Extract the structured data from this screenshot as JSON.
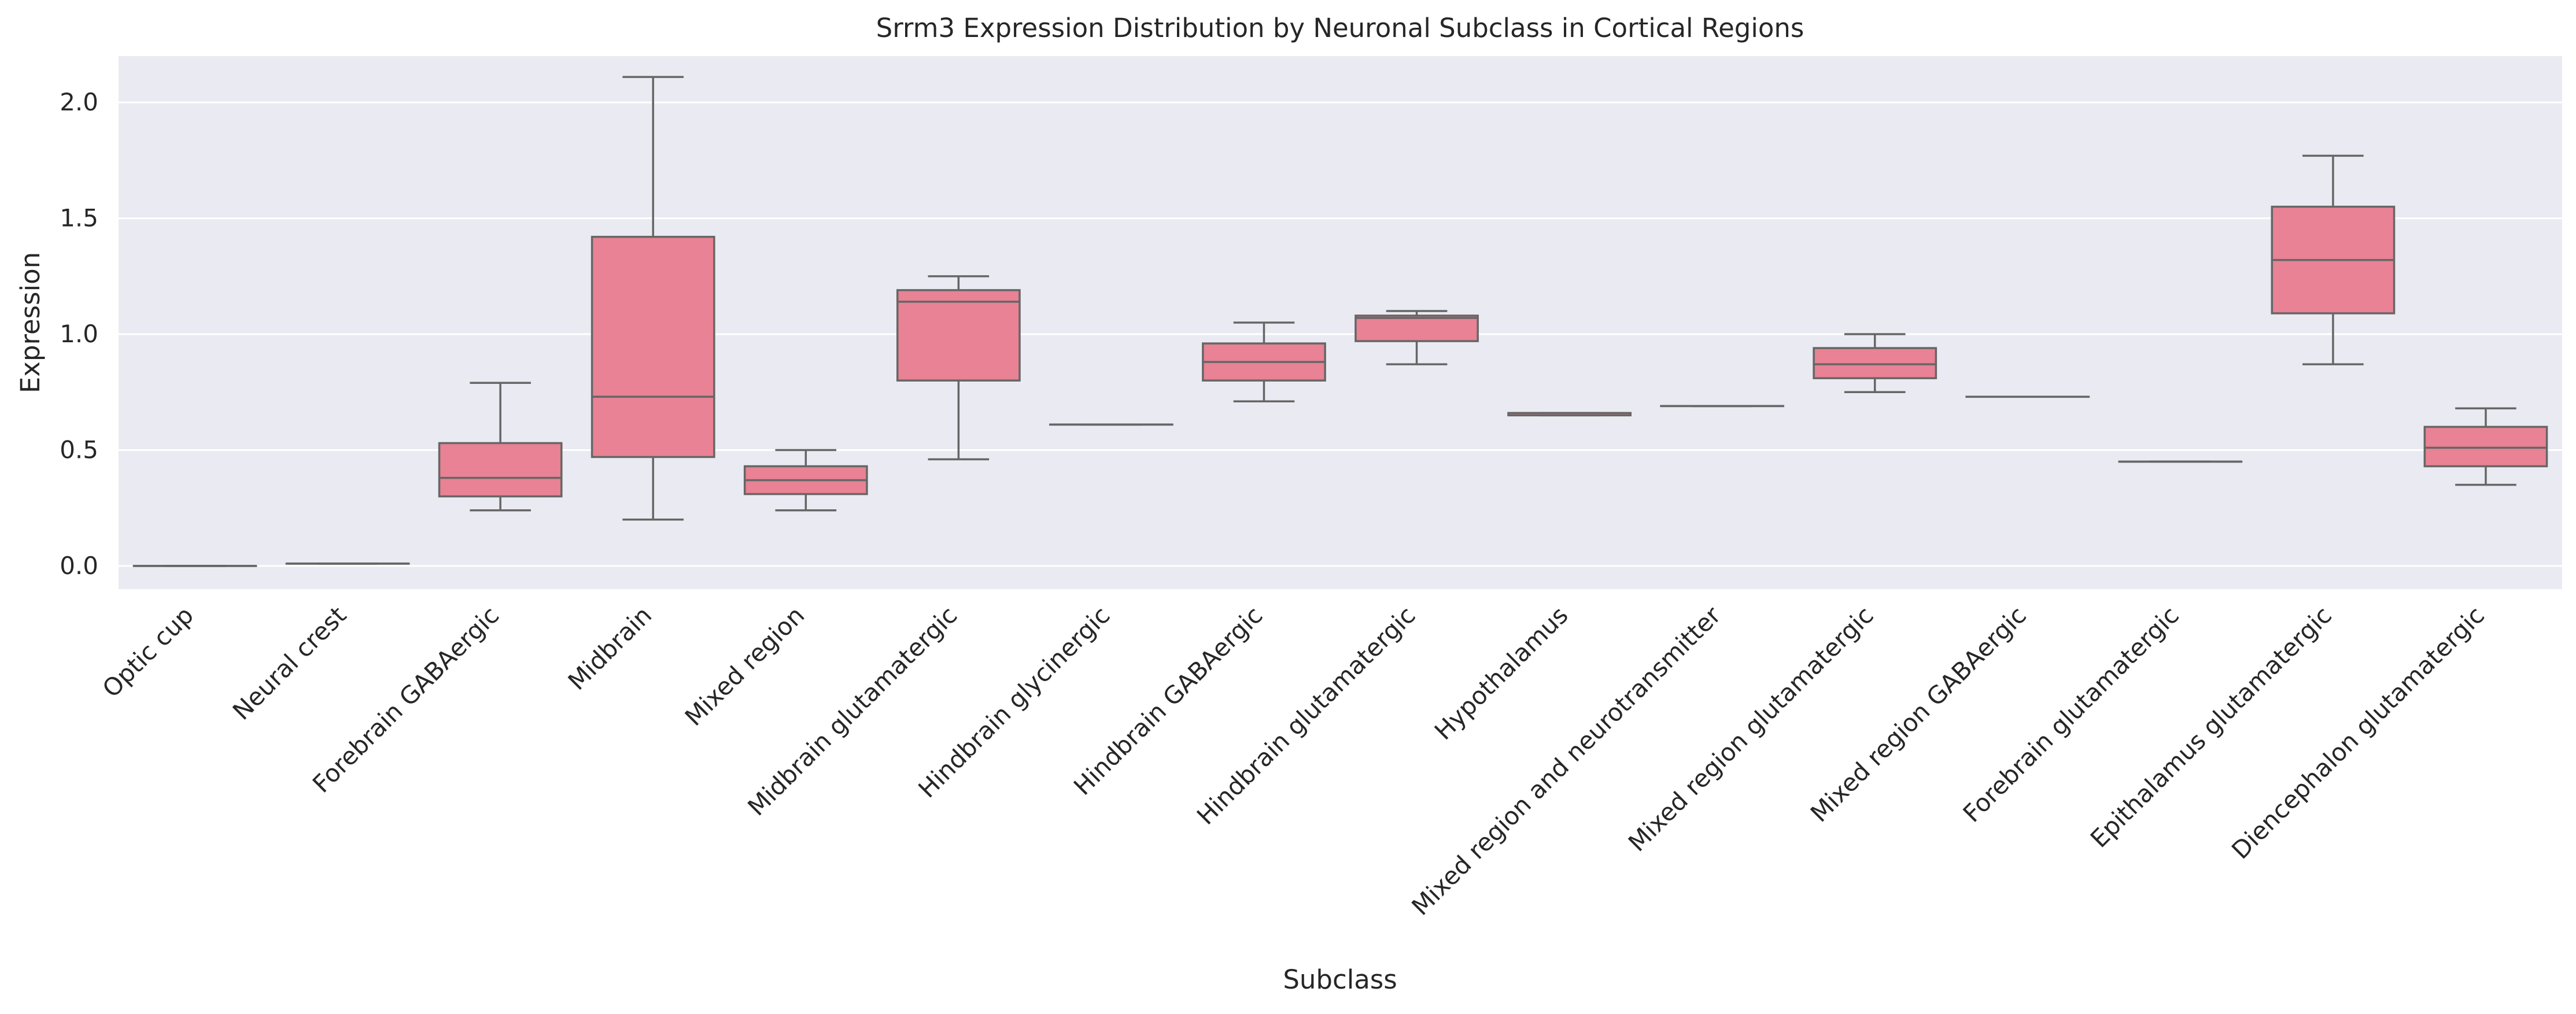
{
  "chart_data": {
    "type": "box",
    "title": "Srrm3 Expression Distribution by Neuronal Subclass in Cortical Regions",
    "xlabel": "Subclass",
    "ylabel": "Expression",
    "ylim": [
      -0.1,
      2.2
    ],
    "yticks": [
      0.0,
      0.5,
      1.0,
      1.5,
      2.0
    ],
    "ytick_labels": [
      "0.0",
      "0.5",
      "1.0",
      "1.5",
      "2.0"
    ],
    "grid": true,
    "colors": {
      "box_fill": "#e88294",
      "box_edge": "#666666",
      "plot_bg": "#eaeaf2",
      "grid": "#ffffff"
    },
    "categories": [
      "Optic cup",
      "Neural crest",
      "Forebrain GABAergic",
      "Midbrain",
      "Mixed region",
      "Midbrain glutamatergic",
      "Hindbrain glycinergic",
      "Hindbrain GABAergic",
      "Hindbrain glutamatergic",
      "Hypothalamus",
      "Mixed region and neurotransmitter",
      "Mixed region glutamatergic",
      "Mixed region GABAergic",
      "Forebrain glutamatergic",
      "Epithalamus glutamatergic",
      "Diencephalon glutamatergic"
    ],
    "boxes": [
      {
        "whisker_low": 0.0,
        "q1": 0.0,
        "median": 0.0,
        "q3": 0.0,
        "whisker_high": 0.0
      },
      {
        "whisker_low": 0.01,
        "q1": 0.01,
        "median": 0.01,
        "q3": 0.01,
        "whisker_high": 0.01
      },
      {
        "whisker_low": 0.24,
        "q1": 0.3,
        "median": 0.38,
        "q3": 0.53,
        "whisker_high": 0.79
      },
      {
        "whisker_low": 0.2,
        "q1": 0.47,
        "median": 0.73,
        "q3": 1.42,
        "whisker_high": 2.11
      },
      {
        "whisker_low": 0.24,
        "q1": 0.31,
        "median": 0.37,
        "q3": 0.43,
        "whisker_high": 0.5
      },
      {
        "whisker_low": 0.46,
        "q1": 0.8,
        "median": 1.14,
        "q3": 1.19,
        "whisker_high": 1.25
      },
      {
        "whisker_low": 0.61,
        "q1": 0.61,
        "median": 0.61,
        "q3": 0.61,
        "whisker_high": 0.61
      },
      {
        "whisker_low": 0.71,
        "q1": 0.8,
        "median": 0.88,
        "q3": 0.96,
        "whisker_high": 1.05
      },
      {
        "whisker_low": 0.87,
        "q1": 0.97,
        "median": 1.07,
        "q3": 1.08,
        "whisker_high": 1.1
      },
      {
        "whisker_low": 0.65,
        "q1": 0.65,
        "median": 0.65,
        "q3": 0.66,
        "whisker_high": 0.66
      },
      {
        "whisker_low": 0.69,
        "q1": 0.69,
        "median": 0.69,
        "q3": 0.69,
        "whisker_high": 0.69
      },
      {
        "whisker_low": 0.75,
        "q1": 0.81,
        "median": 0.87,
        "q3": 0.94,
        "whisker_high": 1.0
      },
      {
        "whisker_low": 0.73,
        "q1": 0.73,
        "median": 0.73,
        "q3": 0.73,
        "whisker_high": 0.73
      },
      {
        "whisker_low": 0.45,
        "q1": 0.45,
        "median": 0.45,
        "q3": 0.45,
        "whisker_high": 0.45
      },
      {
        "whisker_low": 0.87,
        "q1": 1.09,
        "median": 1.32,
        "q3": 1.55,
        "whisker_high": 1.77
      },
      {
        "whisker_low": 0.35,
        "q1": 0.43,
        "median": 0.51,
        "q3": 0.6,
        "whisker_high": 0.68
      }
    ]
  }
}
